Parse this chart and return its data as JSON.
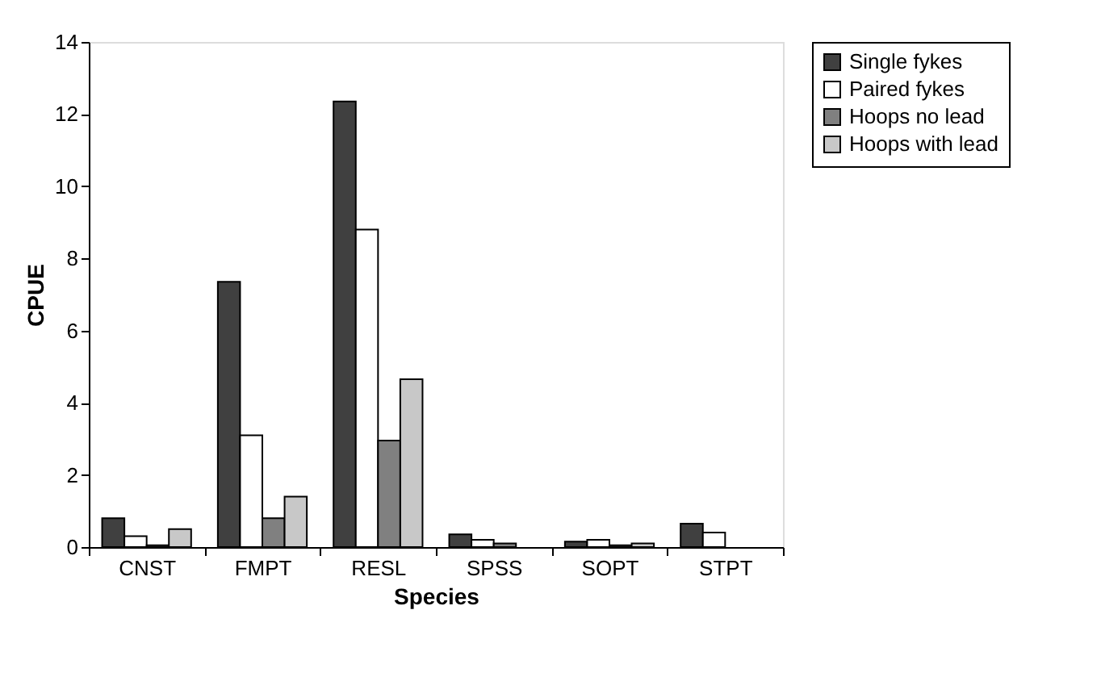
{
  "chart_data": {
    "type": "bar",
    "xlabel": "Species",
    "ylabel": "CPUE",
    "categories": [
      "CNST",
      "FMPT",
      "RESL",
      "SPSS",
      "SOPT",
      "STPT"
    ],
    "series": [
      {
        "name": "Single fykes",
        "color": "#404040",
        "values": [
          0.8,
          7.35,
          12.35,
          0.35,
          0.15,
          0.65
        ]
      },
      {
        "name": "Paired fykes",
        "color": "#ffffff",
        "values": [
          0.3,
          3.1,
          8.8,
          0.2,
          0.2,
          0.4
        ]
      },
      {
        "name": "Hoops no lead",
        "color": "#808080",
        "values": [
          0.05,
          0.8,
          2.95,
          0.1,
          0.05,
          null
        ]
      },
      {
        "name": "Hoops with lead",
        "color": "#c8c8c8",
        "values": [
          0.5,
          1.4,
          4.65,
          null,
          0.1,
          null
        ]
      }
    ],
    "ylim": [
      0,
      14
    ],
    "yticks": [
      0,
      2,
      4,
      6,
      8,
      10,
      12,
      14
    ],
    "grid": false,
    "legend": "right"
  }
}
